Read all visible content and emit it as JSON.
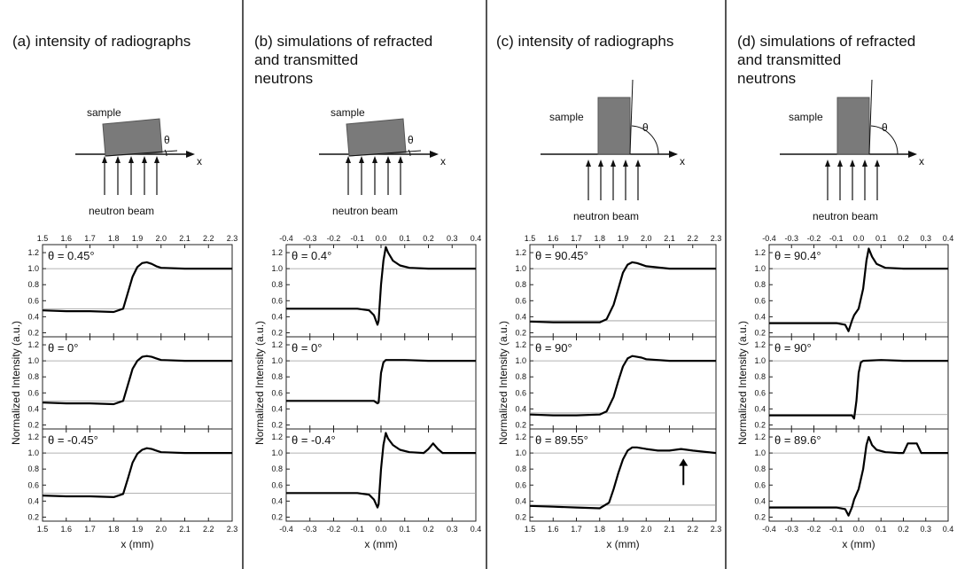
{
  "panels": [
    {
      "id": "a",
      "title": "(a) intensity of radiographs",
      "diagram": {
        "type": "horizontal",
        "sample_label": "sample",
        "beam_label": "neutron beam",
        "angle_symbol": "θ",
        "axis_symbol": "x"
      }
    },
    {
      "id": "b",
      "title": "(b) simulations of refracted\nand transmitted\nneutrons",
      "diagram": {
        "type": "horizontal",
        "sample_label": "sample",
        "beam_label": "neutron beam",
        "angle_symbol": "θ",
        "axis_symbol": "x"
      }
    },
    {
      "id": "c",
      "title": "(c) intensity of radiographs",
      "diagram": {
        "type": "vertical",
        "sample_label": "sample",
        "beam_label": "neutron beam",
        "angle_symbol": "θ",
        "axis_symbol": "x"
      }
    },
    {
      "id": "d",
      "title": "(d) simulations of refracted\nand transmitted\nneutrons",
      "diagram": {
        "type": "vertical",
        "sample_label": "sample",
        "beam_label": "neutron beam",
        "angle_symbol": "θ",
        "axis_symbol": "x"
      }
    }
  ],
  "chart_data": [
    {
      "panel": "a",
      "type": "line",
      "xlabel": "x (mm)",
      "ylabel": "Normalized Intensity (a.u.)",
      "xlim": [
        1.5,
        2.3
      ],
      "xticks": [
        "1.5",
        "1.6",
        "1.7",
        "1.8",
        "1.9",
        "2.0",
        "2.1",
        "2.2",
        "2.3"
      ],
      "ylim": [
        0.15,
        1.3
      ],
      "yticks": [
        "0.2",
        "0.4",
        "0.6",
        "0.8",
        "1.0",
        "1.2"
      ],
      "reference_lines": [
        0.5,
        1.0
      ],
      "subplots": [
        {
          "label": "θ = 0.45°",
          "x": [
            1.5,
            1.6,
            1.7,
            1.8,
            1.84,
            1.86,
            1.88,
            1.9,
            1.92,
            1.94,
            1.96,
            1.98,
            2.0,
            2.1,
            2.2,
            2.3
          ],
          "y": [
            0.48,
            0.47,
            0.47,
            0.46,
            0.5,
            0.7,
            0.9,
            1.02,
            1.07,
            1.08,
            1.06,
            1.03,
            1.01,
            1.0,
            1.0,
            1.0
          ]
        },
        {
          "label": "θ = 0°",
          "x": [
            1.5,
            1.6,
            1.7,
            1.8,
            1.84,
            1.86,
            1.88,
            1.9,
            1.92,
            1.94,
            1.96,
            1.98,
            2.0,
            2.1,
            2.2,
            2.3
          ],
          "y": [
            0.48,
            0.47,
            0.47,
            0.46,
            0.5,
            0.7,
            0.9,
            1.0,
            1.05,
            1.06,
            1.05,
            1.03,
            1.01,
            1.0,
            1.0,
            1.0
          ]
        },
        {
          "label": "θ = -0.45°",
          "x": [
            1.5,
            1.6,
            1.7,
            1.8,
            1.84,
            1.86,
            1.88,
            1.9,
            1.92,
            1.94,
            1.96,
            1.98,
            2.0,
            2.1,
            2.2,
            2.3
          ],
          "y": [
            0.47,
            0.46,
            0.46,
            0.45,
            0.49,
            0.68,
            0.88,
            0.99,
            1.04,
            1.06,
            1.05,
            1.03,
            1.01,
            1.0,
            1.0,
            1.0
          ]
        }
      ]
    },
    {
      "panel": "b",
      "type": "line",
      "xlabel": "x (mm)",
      "ylabel": "Normalized Intensity (a.u.)",
      "xlim": [
        -0.4,
        0.4
      ],
      "xticks": [
        "-0.4",
        "-0.3",
        "-0.2",
        "-0.1",
        "0.0",
        "0.1",
        "0.2",
        "0.3",
        "0.4"
      ],
      "ylim": [
        0.15,
        1.3
      ],
      "yticks": [
        "0.2",
        "0.4",
        "0.6",
        "0.8",
        "1.0",
        "1.2"
      ],
      "reference_lines": [
        0.5,
        1.0
      ],
      "subplots": [
        {
          "label": "θ = 0.4°",
          "x": [
            -0.4,
            -0.1,
            -0.05,
            -0.03,
            -0.015,
            -0.01,
            0.0,
            0.01,
            0.02,
            0.03,
            0.05,
            0.08,
            0.12,
            0.2,
            0.3,
            0.4
          ],
          "y": [
            0.5,
            0.5,
            0.48,
            0.42,
            0.3,
            0.35,
            0.8,
            1.1,
            1.27,
            1.2,
            1.1,
            1.04,
            1.01,
            1.0,
            1.0,
            1.0
          ]
        },
        {
          "label": "θ = 0°",
          "x": [
            -0.4,
            -0.1,
            -0.03,
            -0.015,
            -0.01,
            0.0,
            0.01,
            0.02,
            0.1,
            0.2,
            0.3,
            0.4
          ],
          "y": [
            0.5,
            0.5,
            0.5,
            0.47,
            0.48,
            0.85,
            0.98,
            1.01,
            1.01,
            1.0,
            1.0,
            1.0
          ]
        },
        {
          "label": "θ = -0.4°",
          "x": [
            -0.4,
            -0.1,
            -0.05,
            -0.03,
            -0.015,
            -0.01,
            0.0,
            0.01,
            0.02,
            0.03,
            0.05,
            0.08,
            0.12,
            0.18,
            0.2,
            0.22,
            0.24,
            0.26,
            0.3,
            0.4
          ],
          "y": [
            0.5,
            0.5,
            0.48,
            0.42,
            0.32,
            0.36,
            0.8,
            1.1,
            1.25,
            1.18,
            1.1,
            1.04,
            1.01,
            1.0,
            1.05,
            1.12,
            1.05,
            1.0,
            1.0,
            1.0
          ]
        }
      ]
    },
    {
      "panel": "c",
      "type": "line",
      "xlabel": "x (mm)",
      "ylabel": "Normalized Intensity (a.u.)",
      "xlim": [
        1.5,
        2.3
      ],
      "xticks": [
        "1.5",
        "1.6",
        "1.7",
        "1.8",
        "1.9",
        "2.0",
        "2.1",
        "2.2",
        "2.3"
      ],
      "ylim": [
        0.15,
        1.3
      ],
      "yticks": [
        "0.2",
        "0.4",
        "0.6",
        "0.8",
        "1.0",
        "1.2"
      ],
      "reference_lines": [
        0.35,
        1.0
      ],
      "subplots": [
        {
          "label": "θ = 90.45°",
          "x": [
            1.5,
            1.6,
            1.7,
            1.8,
            1.83,
            1.86,
            1.88,
            1.9,
            1.92,
            1.94,
            1.96,
            1.98,
            2.0,
            2.1,
            2.2,
            2.3
          ],
          "y": [
            0.34,
            0.33,
            0.33,
            0.33,
            0.37,
            0.55,
            0.75,
            0.95,
            1.05,
            1.08,
            1.07,
            1.05,
            1.03,
            1.0,
            1.0,
            1.0
          ]
        },
        {
          "label": "θ = 90°",
          "x": [
            1.5,
            1.6,
            1.7,
            1.8,
            1.83,
            1.86,
            1.88,
            1.9,
            1.92,
            1.94,
            1.96,
            1.98,
            2.0,
            2.1,
            2.2,
            2.3
          ],
          "y": [
            0.33,
            0.32,
            0.32,
            0.33,
            0.37,
            0.55,
            0.75,
            0.93,
            1.03,
            1.06,
            1.05,
            1.04,
            1.02,
            1.0,
            1.0,
            1.0
          ]
        },
        {
          "label": "θ = 89.55°",
          "x": [
            1.5,
            1.6,
            1.7,
            1.8,
            1.84,
            1.86,
            1.88,
            1.9,
            1.92,
            1.94,
            1.96,
            1.98,
            2.0,
            2.05,
            2.1,
            2.15,
            2.2,
            2.3
          ],
          "y": [
            0.34,
            0.33,
            0.32,
            0.31,
            0.38,
            0.55,
            0.75,
            0.92,
            1.03,
            1.07,
            1.07,
            1.06,
            1.05,
            1.03,
            1.03,
            1.05,
            1.03,
            1.0
          ]
        }
      ]
    },
    {
      "panel": "d",
      "type": "line",
      "xlabel": "x (mm)",
      "ylabel": "Normalized Intensity (a.u.)",
      "xlim": [
        -0.4,
        0.4
      ],
      "xticks": [
        "-0.4",
        "-0.3",
        "-0.2",
        "-0.1",
        "0.0",
        "0.1",
        "0.2",
        "0.3",
        "0.4"
      ],
      "ylim": [
        0.15,
        1.3
      ],
      "yticks": [
        "0.2",
        "0.4",
        "0.6",
        "0.8",
        "1.0",
        "1.2"
      ],
      "reference_lines": [
        0.33,
        1.0
      ],
      "subplots": [
        {
          "label": "θ = 90.4°",
          "x": [
            -0.4,
            -0.1,
            -0.06,
            -0.045,
            -0.03,
            -0.02,
            0.0,
            0.02,
            0.035,
            0.045,
            0.06,
            0.08,
            0.12,
            0.2,
            0.3,
            0.4
          ],
          "y": [
            0.32,
            0.32,
            0.3,
            0.22,
            0.35,
            0.42,
            0.5,
            0.75,
            1.1,
            1.25,
            1.15,
            1.06,
            1.01,
            1.0,
            1.0,
            1.0
          ]
        },
        {
          "label": "θ = 90°",
          "x": [
            -0.4,
            -0.1,
            -0.03,
            -0.02,
            -0.01,
            0.0,
            0.01,
            0.02,
            0.1,
            0.2,
            0.3,
            0.4
          ],
          "y": [
            0.32,
            0.32,
            0.32,
            0.28,
            0.5,
            0.85,
            0.98,
            1.0,
            1.01,
            1.0,
            1.0,
            1.0
          ]
        },
        {
          "label": "θ = 89.6°",
          "x": [
            -0.4,
            -0.1,
            -0.06,
            -0.045,
            -0.03,
            -0.02,
            0.0,
            0.02,
            0.035,
            0.045,
            0.06,
            0.08,
            0.12,
            0.18,
            0.2,
            0.22,
            0.26,
            0.28,
            0.3,
            0.4
          ],
          "y": [
            0.32,
            0.32,
            0.3,
            0.22,
            0.32,
            0.42,
            0.55,
            0.8,
            1.1,
            1.2,
            1.1,
            1.04,
            1.01,
            1.0,
            1.0,
            1.12,
            1.12,
            1.0,
            1.0,
            1.0
          ]
        }
      ]
    }
  ]
}
